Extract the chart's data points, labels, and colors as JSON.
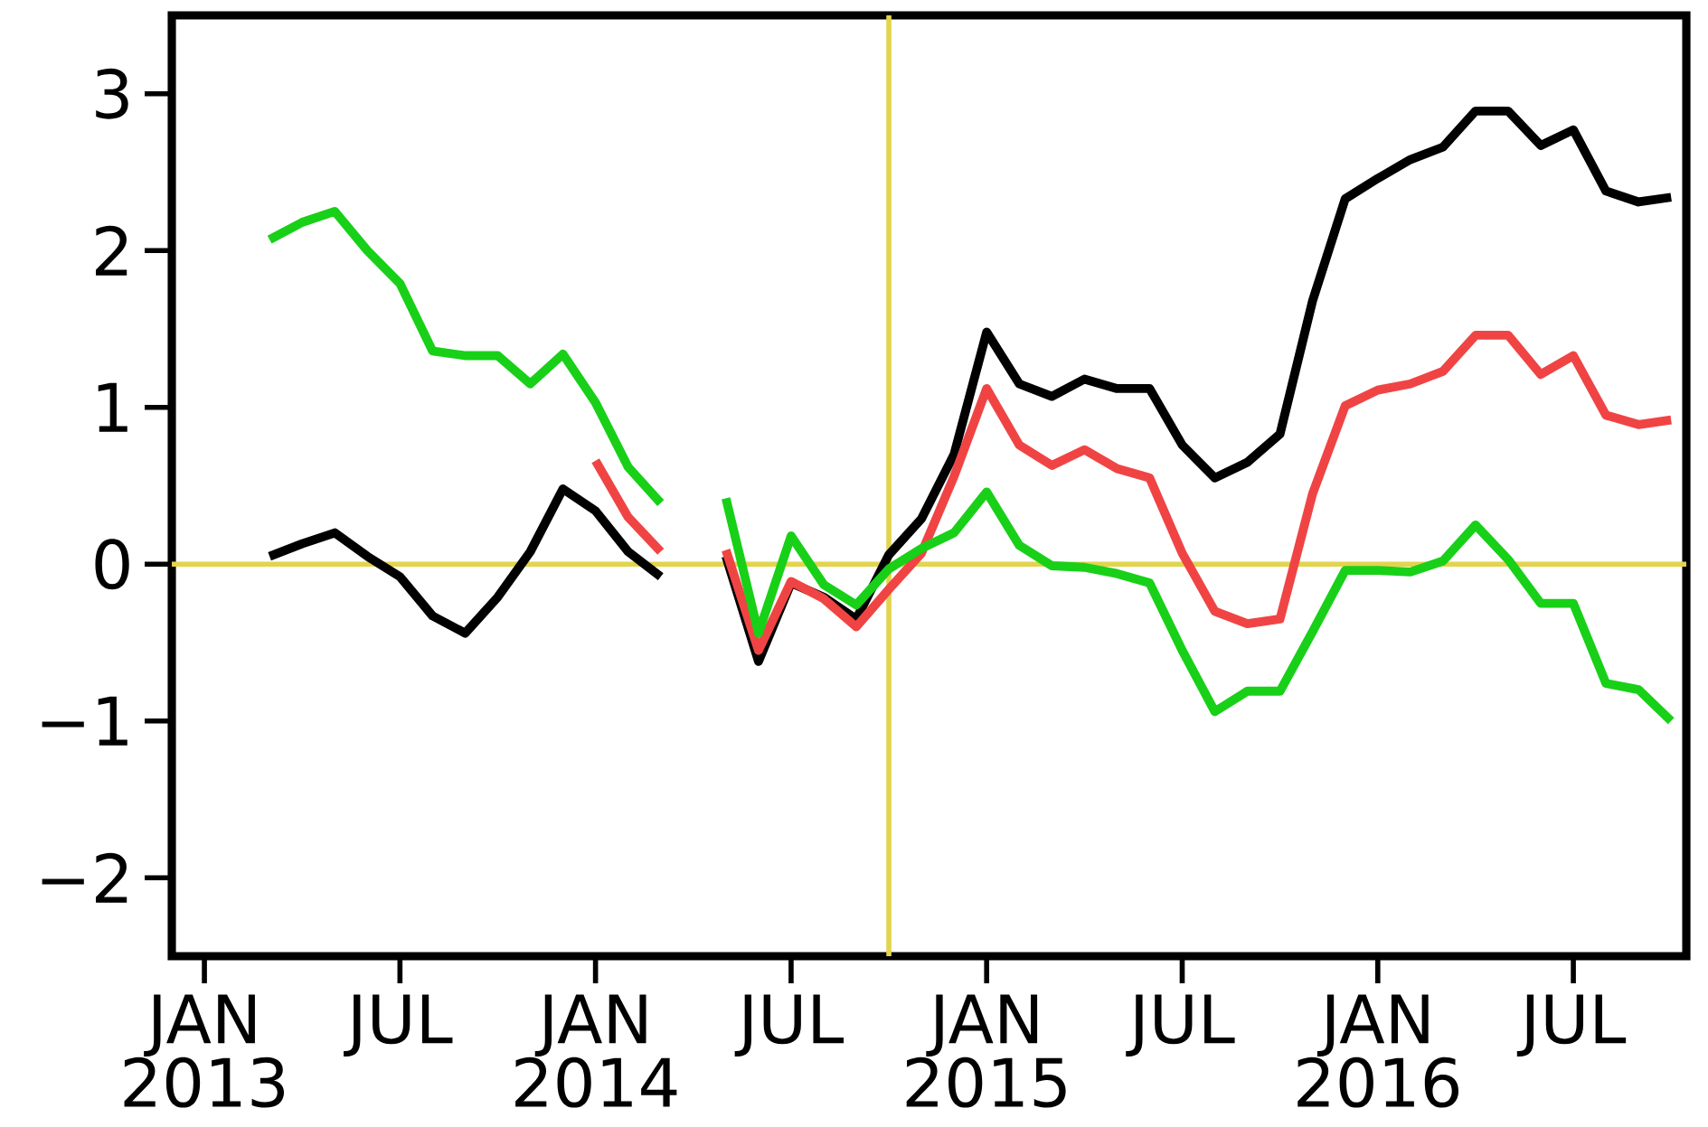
{
  "chart_data": {
    "type": "line",
    "x": [
      "2013-03",
      "2013-04",
      "2013-05",
      "2013-06",
      "2013-07",
      "2013-08",
      "2013-09",
      "2013-10",
      "2013-11",
      "2013-12",
      "2014-01",
      "2014-02",
      "2014-03",
      "2014-04",
      "2014-05",
      "2014-06",
      "2014-07",
      "2014-08",
      "2014-09",
      "2014-10",
      "2014-11",
      "2014-12",
      "2015-01",
      "2015-02",
      "2015-03",
      "2015-04",
      "2015-05",
      "2015-06",
      "2015-07",
      "2015-08",
      "2015-09",
      "2015-10",
      "2015-11",
      "2015-12",
      "2016-01",
      "2016-02",
      "2016-03",
      "2016-04",
      "2016-05",
      "2016-06",
      "2016-07",
      "2016-08",
      "2016-09",
      "2016-10"
    ],
    "series": [
      {
        "color": "#000000",
        "values": [
          0.05,
          0.13,
          0.2,
          0.05,
          -0.08,
          -0.33,
          -0.44,
          -0.21,
          0.08,
          0.48,
          0.34,
          0.08,
          -0.08,
          null,
          0.05,
          -0.62,
          -0.12,
          -0.21,
          -0.35,
          0.06,
          0.29,
          0.7,
          1.48,
          1.15,
          1.07,
          1.18,
          1.12,
          1.12,
          0.76,
          0.55,
          0.65,
          0.83,
          1.68,
          2.33,
          2.46,
          2.58,
          2.66,
          2.89,
          2.89,
          2.67,
          2.77,
          2.38,
          2.31,
          2.34
        ]
      },
      {
        "color": "#f04444",
        "values": [
          null,
          null,
          null,
          null,
          null,
          null,
          null,
          null,
          null,
          null,
          0.66,
          0.3,
          0.08,
          null,
          0.09,
          -0.55,
          -0.11,
          -0.22,
          -0.4,
          -0.16,
          0.07,
          0.56,
          1.12,
          0.76,
          0.63,
          0.73,
          0.61,
          0.55,
          0.07,
          -0.3,
          -0.38,
          -0.35,
          0.45,
          1.01,
          1.11,
          1.15,
          1.23,
          1.46,
          1.46,
          1.21,
          1.33,
          0.95,
          0.89,
          0.92
        ]
      },
      {
        "color": "#18d018",
        "values": [
          2.07,
          2.18,
          2.25,
          2.0,
          1.79,
          1.36,
          1.33,
          1.33,
          1.15,
          1.34,
          1.03,
          0.62,
          0.39,
          null,
          0.42,
          -0.44,
          0.18,
          -0.13,
          -0.26,
          -0.03,
          0.1,
          0.2,
          0.46,
          0.12,
          -0.01,
          -0.02,
          -0.06,
          -0.12,
          -0.55,
          -0.94,
          -0.81,
          -0.81,
          -0.43,
          -0.04,
          -0.04,
          -0.05,
          0.02,
          0.25,
          0.03,
          -0.25,
          -0.25,
          -0.76,
          -0.8,
          -1.0
        ]
      }
    ],
    "xlim": [
      "2012-12",
      "2016-10-15"
    ],
    "xticks": [
      {
        "value": "2013-01",
        "label": "JAN 2013"
      },
      {
        "value": "2013-07",
        "label": "JUL"
      },
      {
        "value": "2014-01",
        "label": "JAN 2014"
      },
      {
        "value": "2014-07",
        "label": "JUL"
      },
      {
        "value": "2015-01",
        "label": "JAN 2015"
      },
      {
        "value": "2015-07",
        "label": "JUL"
      },
      {
        "value": "2016-01",
        "label": "JAN 2016"
      },
      {
        "value": "2016-07",
        "label": "JUL"
      }
    ],
    "ylim": [
      -2.5,
      3.5
    ],
    "yticks": [
      {
        "value": -2,
        "label": "−2"
      },
      {
        "value": -1,
        "label": "−1"
      },
      0,
      1,
      2,
      3
    ],
    "ref_lines": [
      {
        "axis": "y",
        "value": 0,
        "color": "#e2d44c"
      },
      {
        "axis": "x",
        "value": "2014-10",
        "color": "#e2d44c"
      }
    ],
    "grid": false,
    "marker": "none",
    "line_style": "solid"
  }
}
